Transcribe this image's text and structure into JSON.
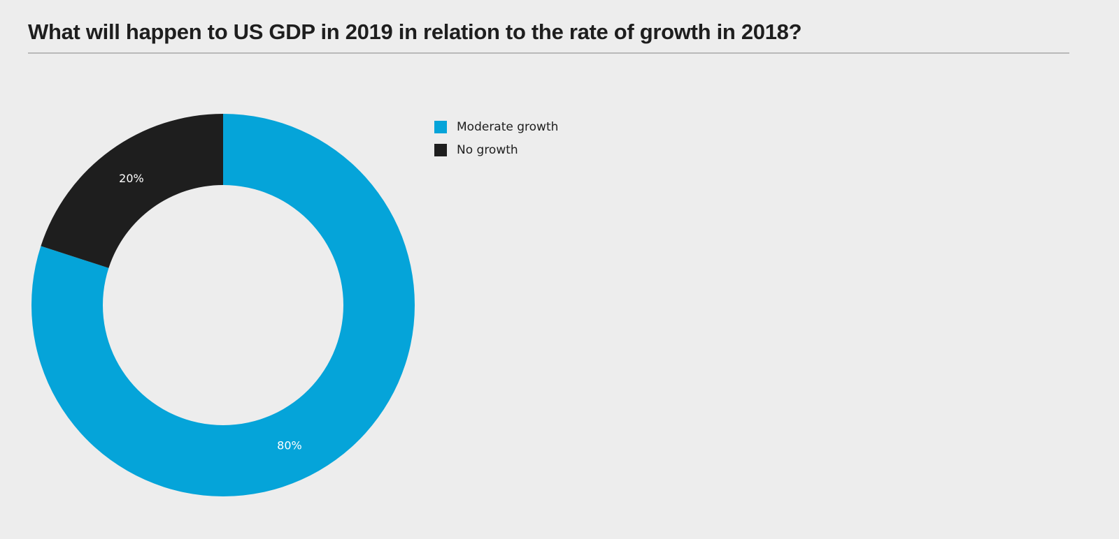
{
  "chart_data": {
    "type": "pie",
    "variant": "donut",
    "title": "What will happen to US GDP in 2019 in relation to the rate of growth in 2018?",
    "categories": [
      "Moderate growth",
      "No growth"
    ],
    "values": [
      80,
      20
    ],
    "labels": [
      "80%",
      "20%"
    ],
    "colors": [
      "#05a4d9",
      "#1e1e1e"
    ],
    "legend": {
      "position": "right-top",
      "entries": [
        {
          "label": "Moderate growth",
          "color": "#05a4d9"
        },
        {
          "label": "No growth",
          "color": "#1e1e1e"
        }
      ]
    },
    "start": "top",
    "direction": "clockwise"
  }
}
